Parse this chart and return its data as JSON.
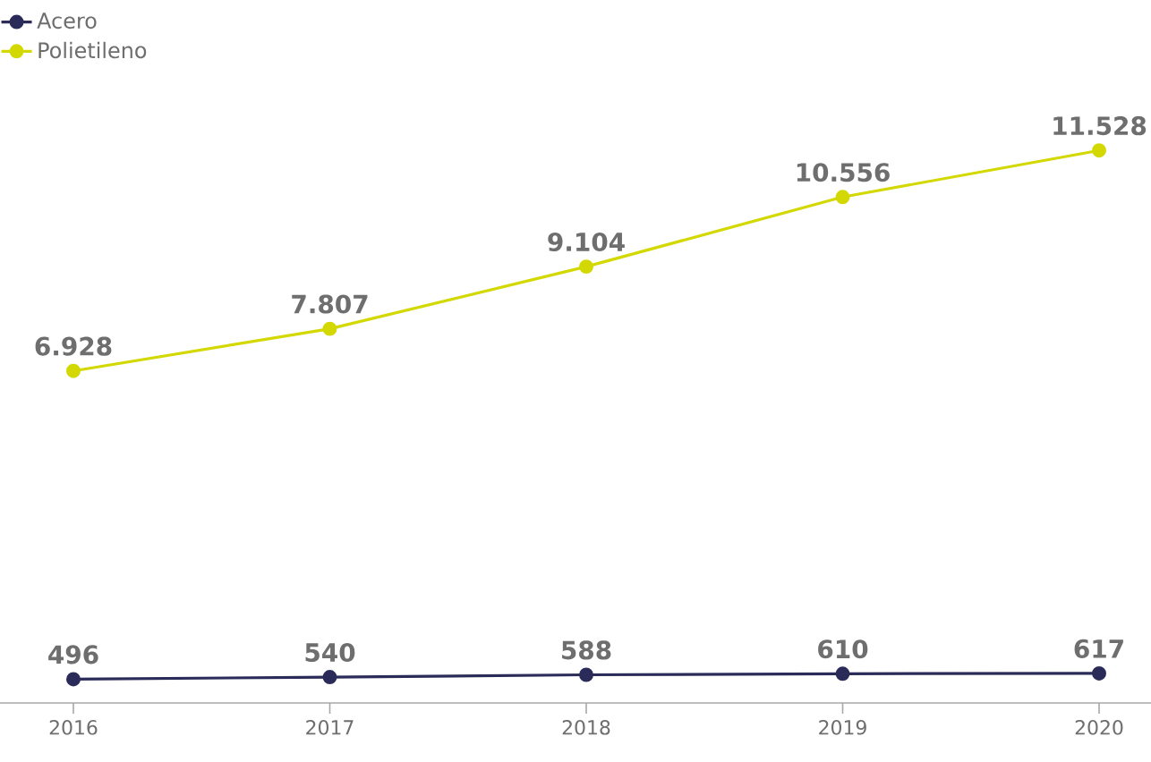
{
  "chart_data": {
    "type": "line",
    "categories": [
      "2016",
      "2017",
      "2018",
      "2019",
      "2020"
    ],
    "series": [
      {
        "name": "Acero",
        "color": "#2b2b5a",
        "values": [
          496,
          540,
          588,
          610,
          617
        ],
        "value_labels": [
          "496",
          "540",
          "588",
          "610",
          "617"
        ]
      },
      {
        "name": "Polietileno",
        "color": "#d2d800",
        "values": [
          6928,
          7807,
          9104,
          10556,
          11528
        ],
        "value_labels": [
          "6.928",
          "7.807",
          "9.104",
          "10.556",
          "11.528"
        ]
      }
    ],
    "marker": "circle",
    "line_style": "solid",
    "legend": "top left",
    "grid": false,
    "tick_labels": "x"
  }
}
